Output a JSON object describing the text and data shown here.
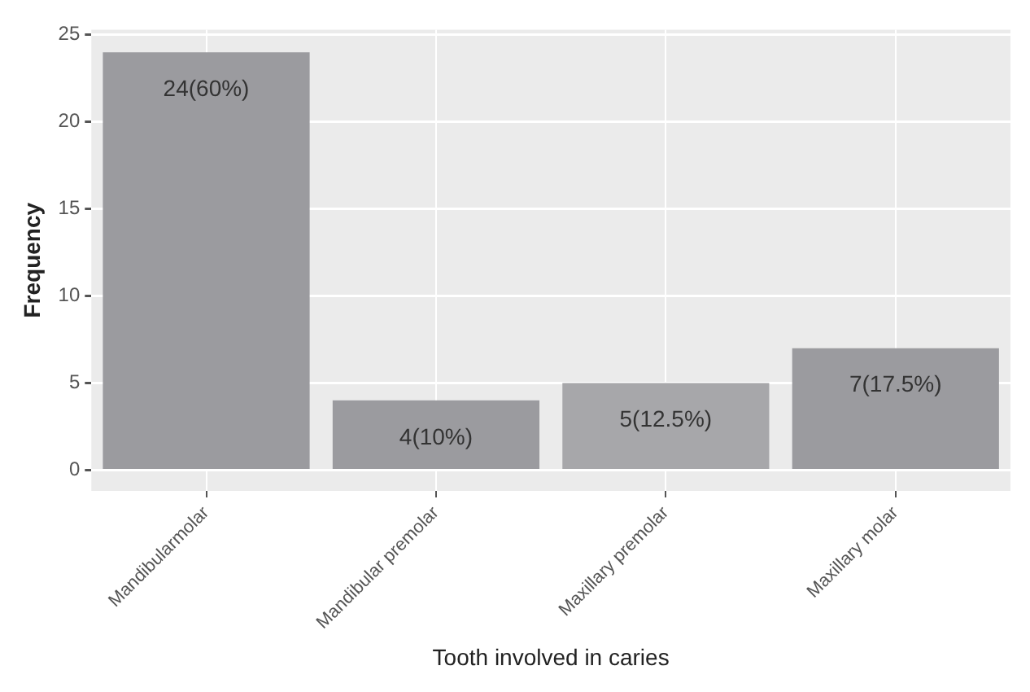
{
  "chart_data": {
    "type": "bar",
    "categories": [
      "Mandibularmolar",
      "Mandibular premolar",
      "Maxillary premolar",
      "Maxillary molar"
    ],
    "values": [
      24,
      4,
      5,
      7
    ],
    "colors": [
      "#9b9b9f",
      "#9b9b9f",
      "#a7a7aa",
      "#9b9b9f"
    ],
    "value_labels": [
      "24(60%)",
      "4(10%)",
      "5(12.5%)",
      "7(17.5%)"
    ],
    "xlabel": "Tooth involved in caries",
    "ylabel": "Frequency",
    "ylim": [
      -1.2,
      25.3
    ],
    "yticks": [
      0,
      5,
      10,
      15,
      20,
      25
    ],
    "grid": true,
    "legend": false
  }
}
